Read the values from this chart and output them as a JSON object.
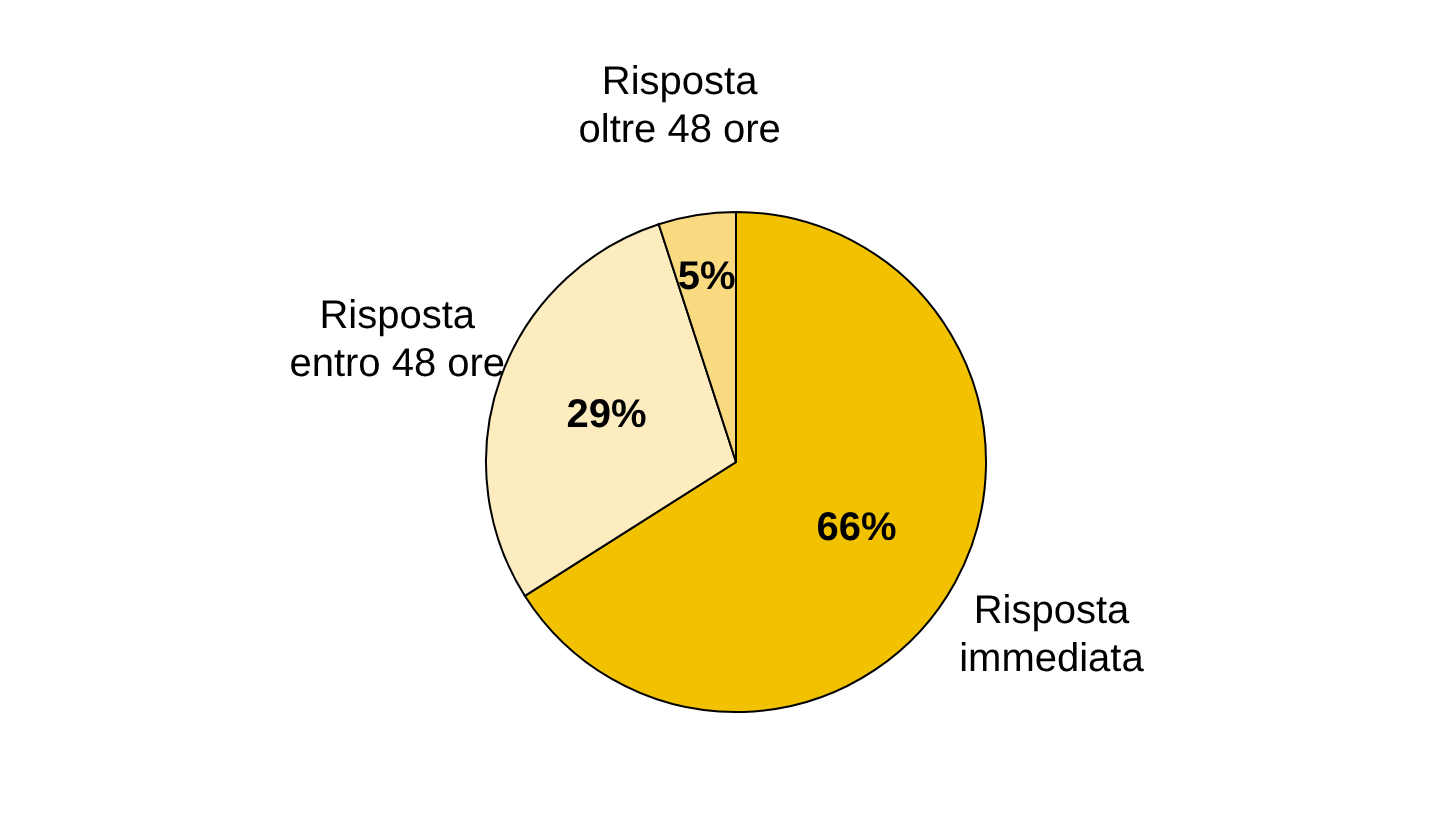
{
  "chart_data": {
    "type": "pie",
    "categories": [
      "Risposta immediata",
      "Risposta entro 48 ore",
      "Risposta oltre 48 ore"
    ],
    "values": [
      66,
      29,
      5
    ],
    "colors": [
      "#f2c200",
      "#fdecc0",
      "#fada80"
    ],
    "value_labels": [
      "66%",
      "29%",
      "5%"
    ]
  }
}
